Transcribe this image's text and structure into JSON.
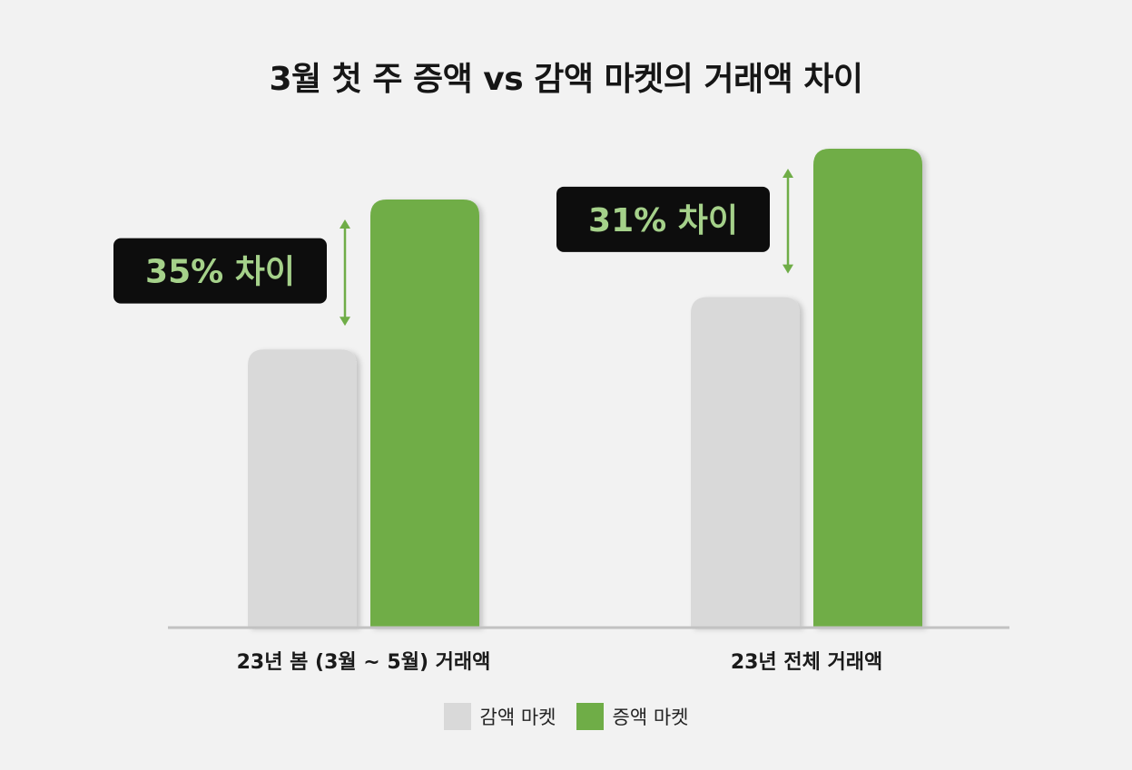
{
  "chart_data": {
    "type": "bar",
    "title": "3월 첫 주 증액 vs 감액 마켓의 거래액 차이",
    "categories": [
      "23년 봄 (3월 ~ 5월) 거래액",
      "23년 전체 거래액"
    ],
    "series": [
      {
        "name": "감액 마켓",
        "color": "#d9d9d9",
        "values": [
          65,
          69
        ]
      },
      {
        "name": "증액 마켓",
        "color": "#6fad47",
        "values": [
          100,
          100
        ]
      }
    ],
    "annotations": [
      "35% 차이",
      "31% 차이"
    ],
    "annotation_color": "#a5d18a",
    "axis_color": "#c2c2c2",
    "ylim": [
      0,
      100
    ],
    "grid": false,
    "legend": "bottom"
  }
}
